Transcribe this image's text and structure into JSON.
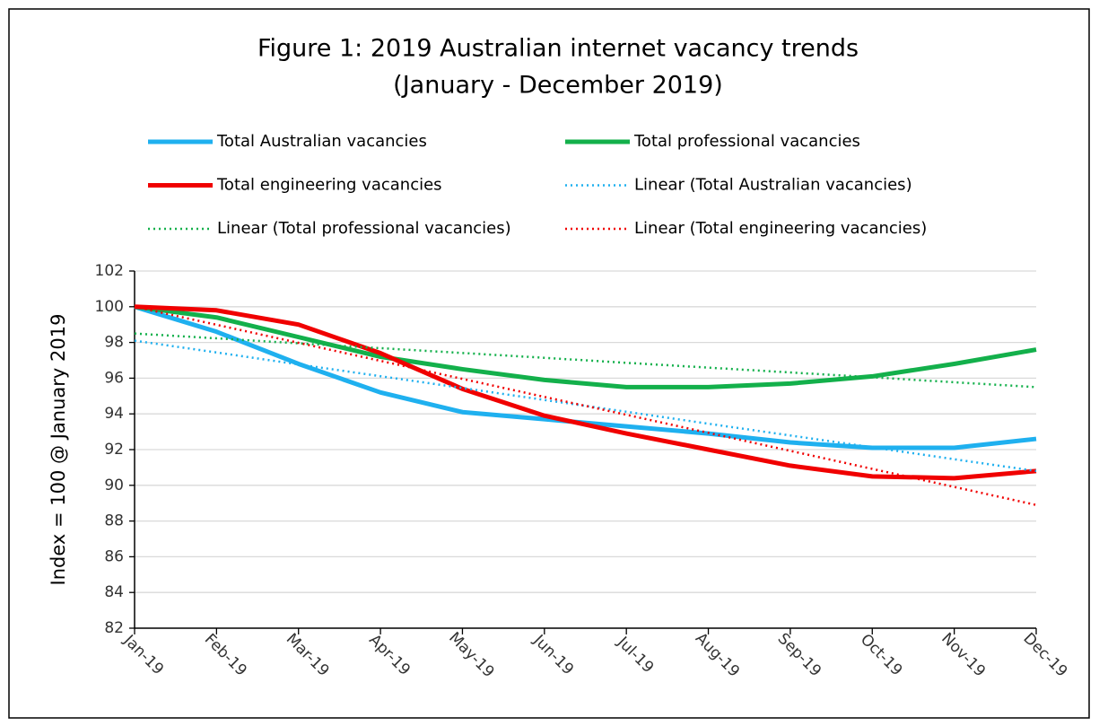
{
  "chart_data": {
    "type": "line",
    "title": "Figure 1: 2019 Australian internet vacancy trends",
    "subtitle": "(January - December 2019)",
    "y_label": "Index = 100 @ January 2019",
    "categories": [
      "Jan-19",
      "Feb-19",
      "Mar-19",
      "Apr-19",
      "May-19",
      "Jun-19",
      "Jul-19",
      "Aug-19",
      "Sep-19",
      "Oct-19",
      "Nov-19",
      "Dec-19"
    ],
    "ylim": [
      82,
      102
    ],
    "yticks": [
      82,
      84,
      86,
      88,
      90,
      92,
      94,
      96,
      98,
      100,
      102
    ],
    "grid": true,
    "series": [
      {
        "name": "Total Australian vacancies",
        "color": "#1fb0ef",
        "style": "solid",
        "values": [
          100,
          98.6,
          96.8,
          95.2,
          94.1,
          93.7,
          93.3,
          92.9,
          92.4,
          92.1,
          92.1,
          92.6
        ]
      },
      {
        "name": "Total professional vacancies",
        "color": "#13b04b",
        "style": "solid",
        "values": [
          100,
          99.4,
          98.3,
          97.2,
          96.5,
          95.9,
          95.5,
          95.5,
          95.7,
          96.1,
          96.8,
          97.6
        ]
      },
      {
        "name": "Total engineering vacancies",
        "color": "#f00000",
        "style": "solid",
        "values": [
          100,
          99.8,
          99.0,
          97.4,
          95.4,
          93.9,
          92.9,
          92.0,
          91.1,
          90.5,
          90.4,
          90.8
        ]
      },
      {
        "name": "Linear (Total Australian vacancies)",
        "color": "#1fb0ef",
        "style": "dotted",
        "values": [
          98.1,
          97.44,
          96.77,
          96.11,
          95.45,
          94.78,
          94.12,
          93.45,
          92.79,
          92.13,
          91.46,
          90.8
        ]
      },
      {
        "name": "Linear (Total professional vacancies)",
        "color": "#13b04b",
        "style": "dotted",
        "values": [
          98.5,
          98.23,
          97.95,
          97.68,
          97.41,
          97.14,
          96.86,
          96.59,
          96.32,
          96.05,
          95.77,
          95.5
        ]
      },
      {
        "name": "Linear (Total engineering vacancies)",
        "color": "#f00000",
        "style": "dotted",
        "values": [
          100,
          98.99,
          97.98,
          96.97,
          95.96,
          94.95,
          93.95,
          92.94,
          91.93,
          90.92,
          89.91,
          88.9
        ]
      }
    ]
  }
}
